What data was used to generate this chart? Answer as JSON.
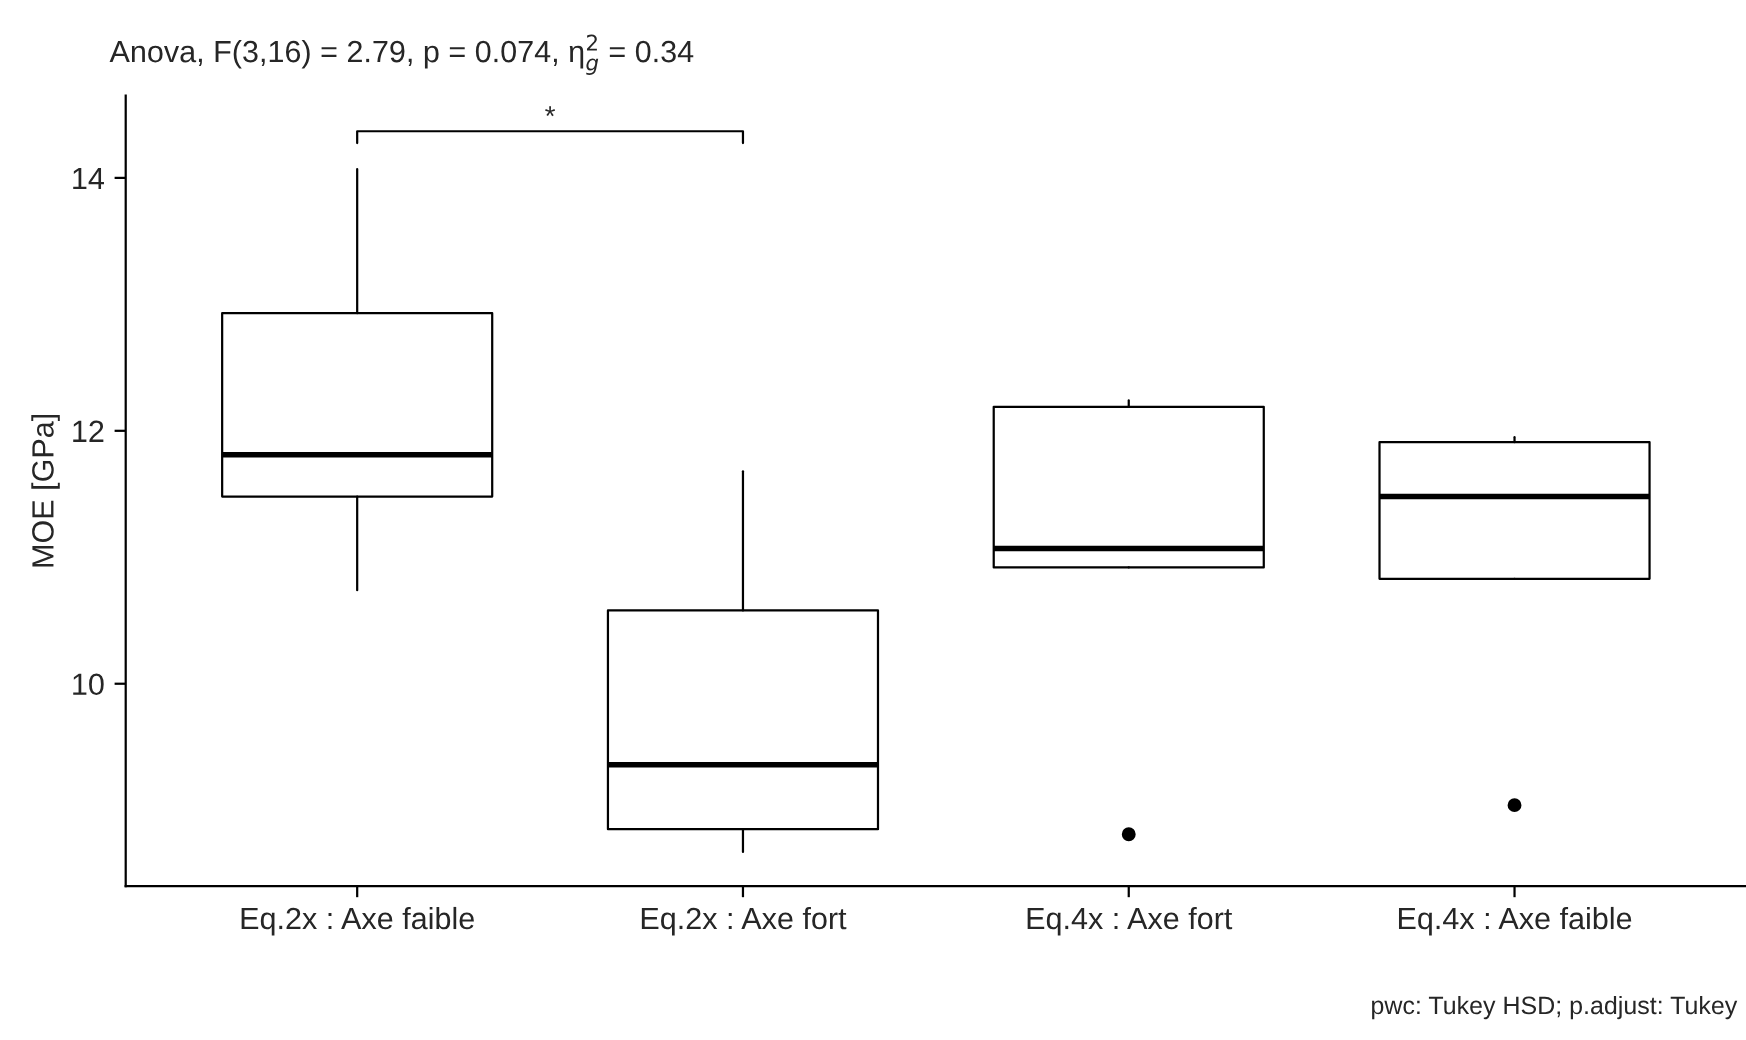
{
  "chart_data": {
    "type": "box",
    "title": "Anova, F(3,16) = 2.79, p = 0.074, η$^{2}$$_{g}$ = 0.34",
    "ylabel": "MOE [GPa]",
    "categories": [
      "Eq.2x : Axe faible",
      "Eq.2x : Axe fort",
      "Eq.4x : Axe fort",
      "Eq.4x : Axe faible"
    ],
    "boxes": [
      {
        "low": 10.74,
        "q1": 11.48,
        "median": 11.81,
        "q3": 12.93,
        "high": 14.07
      },
      {
        "low": 8.67,
        "q1": 8.85,
        "median": 9.36,
        "q3": 10.58,
        "high": 11.68
      },
      {
        "low": 10.92,
        "q1": 10.92,
        "median": 11.07,
        "q3": 12.19,
        "high": 12.24,
        "outliers": [
          8.81
        ]
      },
      {
        "low": 10.83,
        "q1": 10.83,
        "median": 11.48,
        "q3": 11.91,
        "high": 11.95,
        "outliers": [
          9.04
        ]
      }
    ],
    "ylim": [
      8.4,
      14.65
    ],
    "yticks": [
      10,
      12,
      14
    ],
    "grid": false,
    "annotations": [
      "*",
      "pwc: Tukey HSD; p.adjust: Tukey"
    ]
  }
}
